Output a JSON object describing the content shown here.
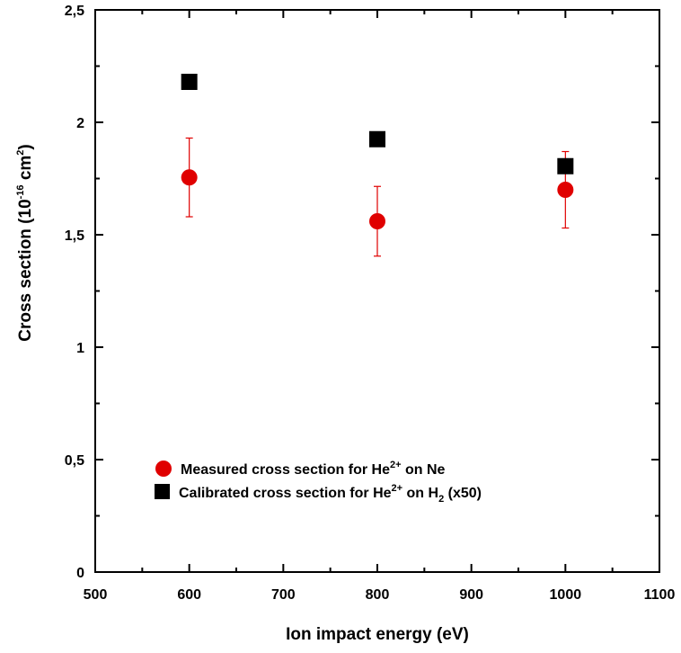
{
  "chart_data": {
    "type": "scatter",
    "title": "",
    "xlabel": "Ion impact energy (eV)",
    "ylabel": {
      "prefix": "Cross section (10",
      "exp": "-16",
      "mid": " cm",
      "exp2": "2",
      "suffix": ")"
    },
    "xlim": [
      500,
      1100
    ],
    "ylim": [
      0,
      2.5
    ],
    "x_ticks": [
      500,
      600,
      700,
      800,
      900,
      1000,
      1100
    ],
    "x_tick_labels": [
      "500",
      "600",
      "700",
      "800",
      "900",
      "1000",
      "1100"
    ],
    "y_ticks": [
      0,
      0.5,
      1,
      1.5,
      2,
      2.5
    ],
    "y_tick_labels": [
      "0",
      "0,5",
      "1",
      "1,5",
      "2",
      "2,5"
    ],
    "grid": false,
    "legend_position": "bottom-left",
    "series": [
      {
        "name": "Measured cross section for He2+ on Ne",
        "legend": {
          "a": "Measured cross section for He",
          "sup": "2+",
          "b": " on Ne"
        },
        "marker": "circle",
        "color": "#e00000",
        "x": [
          600,
          800,
          1000
        ],
        "y": [
          1.755,
          1.56,
          1.7
        ],
        "error": [
          0.175,
          0.155,
          0.17
        ]
      },
      {
        "name": "Calibrated cross section for He2+ on H2 (x50)",
        "legend": {
          "a": "Calibrated cross section for He",
          "sup": "2+",
          "b": " on H",
          "sub": "2",
          "c": " (x50)"
        },
        "marker": "square",
        "color": "#000000",
        "x": [
          600,
          800,
          1000
        ],
        "y": [
          2.18,
          1.925,
          1.805
        ]
      }
    ]
  }
}
